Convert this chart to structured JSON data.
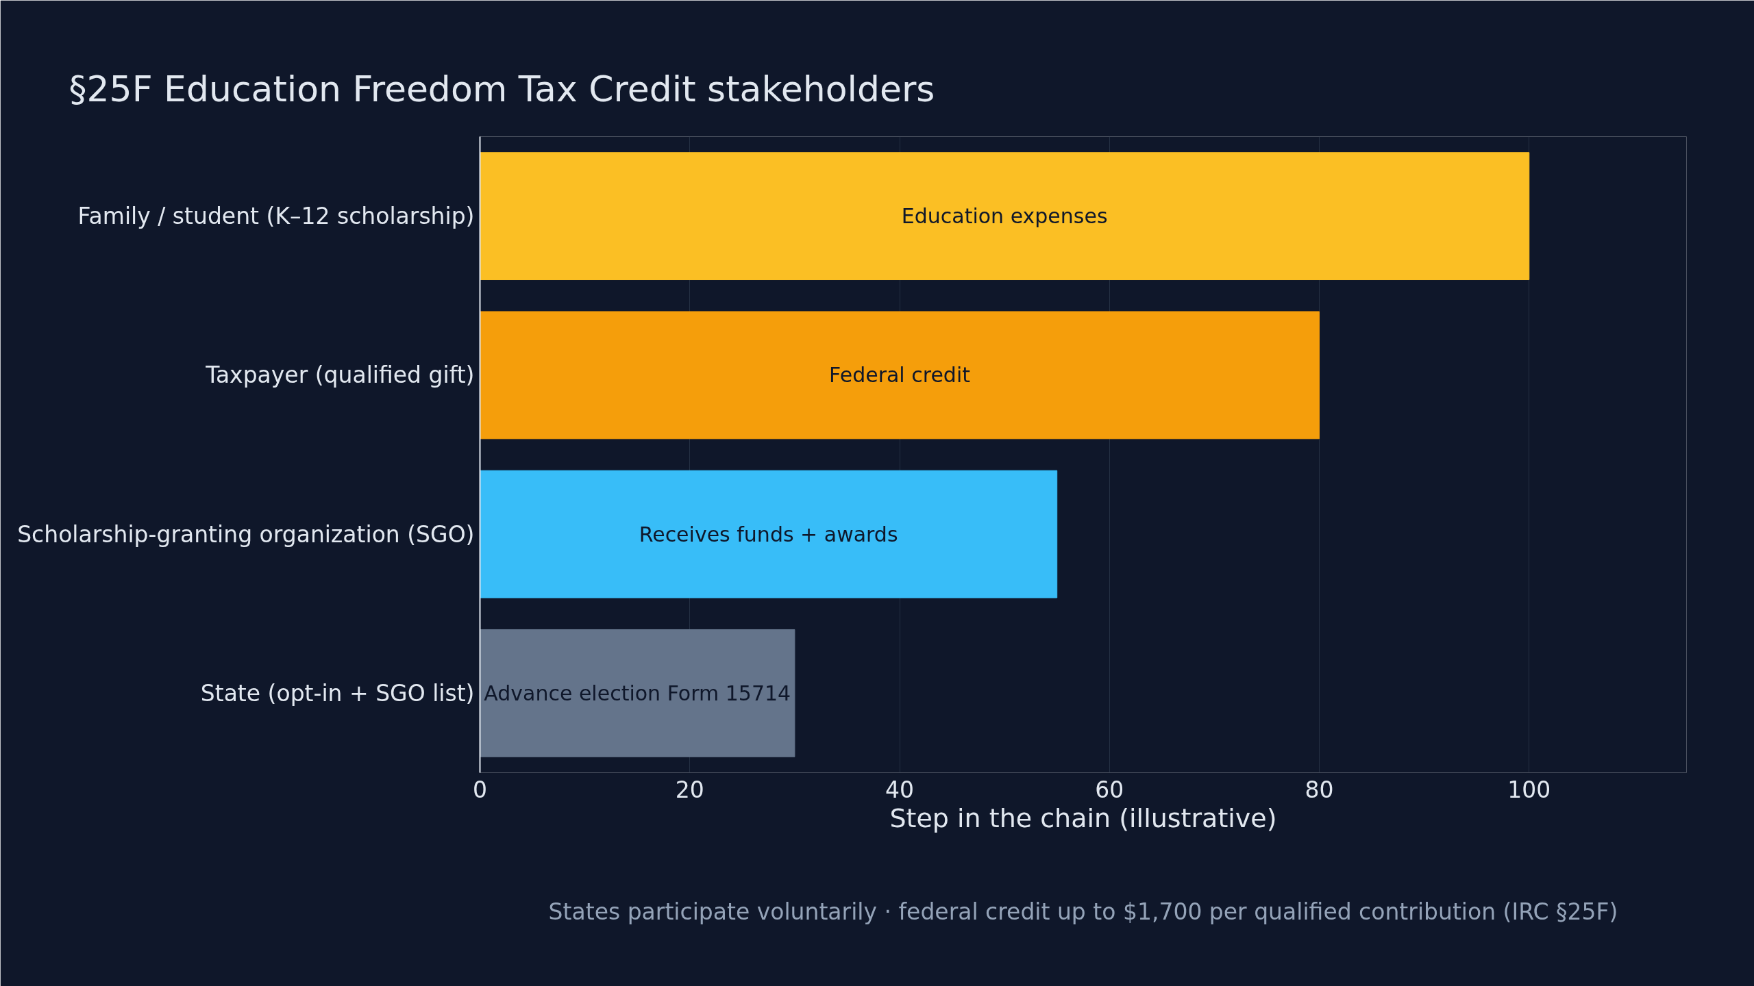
{
  "chart_data": {
    "type": "bar",
    "orientation": "horizontal",
    "title": "§25F Education Freedom Tax Credit stakeholders",
    "xlabel": "Step in the chain (illustrative)",
    "categories": [
      "Family / student (K–12 scholarship)",
      "Taxpayer (qualified gift)",
      "Scholarship-granting organization (SGO)",
      "State (opt-in + SGO list)"
    ],
    "values": [
      100,
      80,
      55,
      30
    ],
    "colors": [
      "#fbbf24",
      "#f59e0b",
      "#38bdf8",
      "#64748b"
    ],
    "value_labels": [
      "Education expenses",
      "Federal credit",
      "Receives funds + awards",
      "Advance election Form 15714"
    ],
    "xlim": [
      0,
      115
    ],
    "xticks": [
      0,
      20,
      40,
      60,
      80,
      100
    ],
    "grid": "x",
    "annotations": [
      "States participate voluntarily · federal credit up to $1,700 per qualified contribution (IRC §25F)"
    ]
  }
}
